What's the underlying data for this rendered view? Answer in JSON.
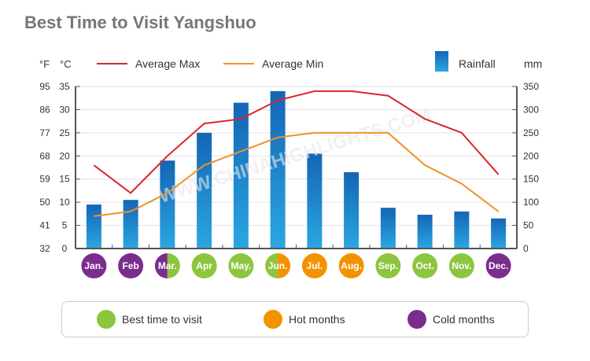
{
  "title": "Best Time to Visit Yangshuo",
  "chart_data": {
    "type": "bar+line",
    "title": "Best Time to Visit Yangshuo",
    "categories": [
      "Jan.",
      "Feb",
      "Mar.",
      "Apr",
      "May.",
      "Jun.",
      "Jul.",
      "Aug.",
      "Sep.",
      "Oct.",
      "Nov.",
      "Dec."
    ],
    "left_axis": {
      "units_f": "°F",
      "units_c": "°C",
      "ticks_c": [
        0,
        5,
        10,
        15,
        20,
        25,
        30,
        35
      ],
      "ticks_f": [
        32,
        41,
        50,
        59,
        68,
        77,
        86,
        95
      ],
      "ylim": [
        0,
        35
      ]
    },
    "right_axis": {
      "units": "mm",
      "ticks": [
        0,
        50,
        100,
        150,
        200,
        250,
        300,
        350
      ],
      "ylim": [
        0,
        350
      ]
    },
    "series": [
      {
        "name": "Average Max",
        "type": "line",
        "color": "#d9262c",
        "values": [
          18,
          12,
          20,
          27,
          28,
          32,
          34,
          34,
          33,
          28,
          25,
          16
        ]
      },
      {
        "name": "Average Min",
        "type": "line",
        "color": "#f0912a",
        "values": [
          7,
          8,
          12,
          18,
          21,
          24,
          25,
          25,
          25,
          18,
          14,
          8
        ]
      },
      {
        "name": "Rainfall",
        "type": "bar",
        "color": "#1e8fd5",
        "values": [
          95,
          105,
          190,
          250,
          315,
          340,
          205,
          165,
          88,
          73,
          80,
          65
        ]
      }
    ],
    "month_season": [
      "cold",
      "cold",
      "cold-best",
      "best",
      "best",
      "best-hot",
      "hot",
      "hot",
      "best",
      "best",
      "best",
      "cold"
    ],
    "watermark": "WWW.CHINAHIGHLIGHTS.COM"
  },
  "legend_bottom": [
    {
      "label": "Best time to visit",
      "color": "#8cc63f"
    },
    {
      "label": "Hot months",
      "color": "#f39200"
    },
    {
      "label": "Cold months",
      "color": "#7b2d8e"
    }
  ]
}
